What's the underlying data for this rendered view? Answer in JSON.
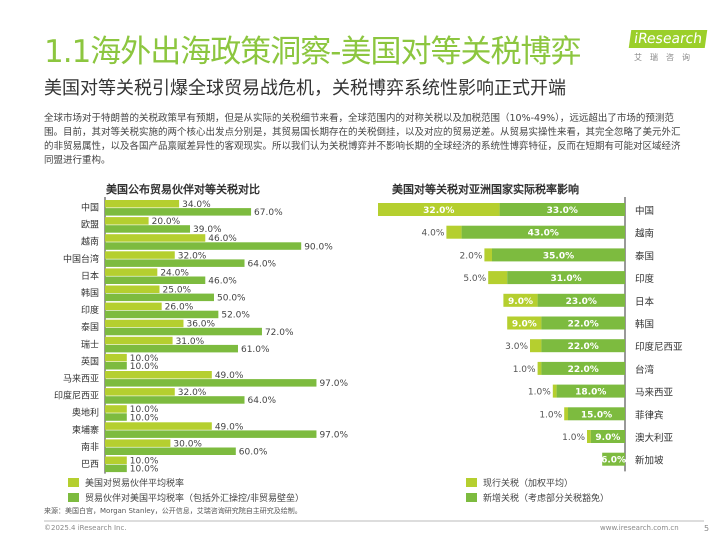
{
  "header": {
    "title": "1.1海外出海政策洞察-美国对等关税博弈",
    "subtitle": "美国对等关税引爆全球贸易战危机，关税博弈系统性影响正式开端",
    "logo_text": "iResearch",
    "logo_sub": "艾瑞咨询"
  },
  "body_text": "全球市场对于特朗普的关税政策早有预期，但是从实际的关税细节来看，全球范围内的对称关税以及加税范围（10%-49%），远远超出了市场的预测范围。目前，其对等关税实施的两个核心出发点分别是，其贸易国长期存在的关税倒挂，以及对应的贸易逆差。从贸易实操性来看，其完全忽略了美元外汇的非贸易属性，以及各国产品禀赋差异性的客观现实。所以我们认为关税博弈并不影响长期的全球经济的系统性博弈特征，反而在短期有可能对区域经济同盟进行重构。",
  "colors": {
    "light": "#b5cf2f",
    "dark": "#7dbb3f",
    "title": "#8cc63f"
  },
  "chart_data": [
    {
      "type": "bar",
      "orientation": "horizontal",
      "title": "美国公布贸易伙伴对等关税对比",
      "categories": [
        "中国",
        "欧盟",
        "越南",
        "中国台湾",
        "日本",
        "韩国",
        "印度",
        "泰国",
        "瑞士",
        "英国",
        "马来西亚",
        "印度尼西亚",
        "奥地利",
        "柬埔寨",
        "南非",
        "巴西"
      ],
      "series": [
        {
          "name": "美国对贸易伙伴平均税率",
          "values": [
            34,
            20,
            46,
            32,
            24,
            25,
            26,
            36,
            31,
            10,
            49,
            32,
            10,
            49,
            30,
            10
          ]
        },
        {
          "name": "贸易伙伴对美国平均税率（包括外汇操控/非贸易壁垒）",
          "values": [
            67,
            39,
            90,
            64,
            46,
            50,
            52,
            72,
            61,
            10,
            97,
            64,
            10,
            97,
            60,
            10
          ]
        }
      ],
      "unit": "%",
      "legend": "bottom"
    },
    {
      "type": "bar",
      "orientation": "horizontal",
      "stacked": true,
      "title": "美国对等关税对亚洲国家实际税率影响",
      "categories": [
        "中国",
        "越南",
        "泰国",
        "印度",
        "日本",
        "韩国",
        "印度尼西亚",
        "台湾",
        "马来西亚",
        "菲律宾",
        "澳大利亚",
        "新加坡"
      ],
      "series": [
        {
          "name": "现行关税（加权平均）",
          "values": [
            32,
            4,
            2,
            5,
            9,
            9,
            3,
            1,
            1,
            1,
            1,
            0
          ]
        },
        {
          "name": "新增关税（考虑部分关税豁免）",
          "values": [
            33,
            43,
            35,
            31,
            23,
            22,
            22,
            22,
            18,
            15,
            9,
            6
          ]
        }
      ],
      "unit": "%",
      "legend": "bottom"
    }
  ],
  "footer": {
    "source": "来源：美国白宫，Morgan Stanley，公开信息，艾瑞咨询研究院自主研究及绘制。",
    "copyright": "©2025.4 iResearch Inc.",
    "url": "www.iresearch.com.cn",
    "page": "5"
  }
}
